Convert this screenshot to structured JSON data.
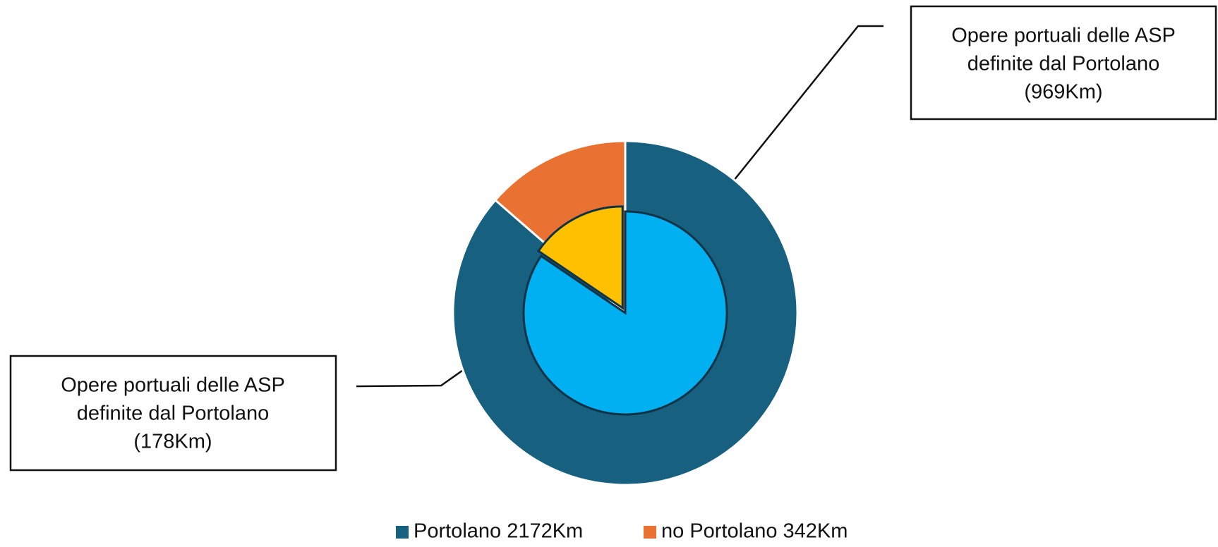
{
  "chart_data": {
    "type": "pie",
    "series": [
      {
        "ring": "outer",
        "names": [
          "Portolano 2172Km",
          "no Portolano 342Km"
        ],
        "values": [
          2172,
          342
        ],
        "colors": [
          "#17607f",
          "#e97132"
        ]
      },
      {
        "ring": "inner",
        "labels": [
          [
            "Opere portuali delle ASP",
            "definite dal Portolano",
            "(969Km)"
          ],
          [
            "Opere portuali delle ASP",
            "definite dal Portolano",
            "(178Km)"
          ]
        ],
        "values": [
          969,
          178
        ],
        "colors": [
          "#00b0f0",
          "#ffc000"
        ]
      }
    ],
    "legend": "bottom"
  }
}
